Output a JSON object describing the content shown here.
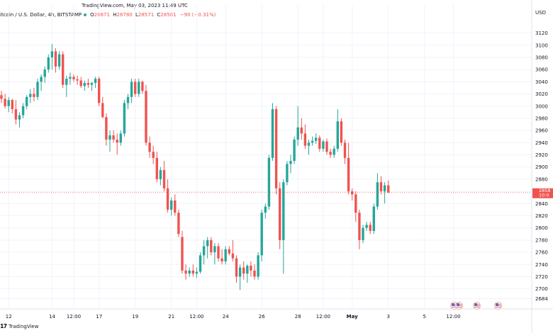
{
  "caption": "TradingView.com, May 03, 2023 11:49 UTC",
  "symbol": {
    "name": "itcoin / U.S. Dollar, 4h, BITSTAMP",
    "o_key": "O",
    "o_val": "28671",
    "h_key": "H",
    "h_val": "28780",
    "l_key": "L",
    "l_val": "28571",
    "c_key": "C",
    "c_val": "28581",
    "change": "−90 (−0.31%)"
  },
  "currency": "USD",
  "price_tag": {
    "price": "2858",
    "countdown": "10:0"
  },
  "brand": "TradingView",
  "colors": {
    "up": "#26a69a",
    "down": "#ef5350",
    "grid": "#f0f3fa",
    "axis_text": "#131722",
    "price_line": "#ef5350"
  },
  "chart_data": {
    "type": "candlestick",
    "ylim": [
      26670,
      31440
    ],
    "y_ticks": [
      31200,
      31000,
      30800,
      30600,
      30400,
      30200,
      30000,
      29800,
      29600,
      29400,
      29200,
      29000,
      28800,
      28600,
      28400,
      28200,
      28000,
      27800,
      27600,
      27400,
      27200,
      27000,
      26840
    ],
    "y_tick_labels": [
      "31200",
      "31000",
      "30800",
      "30600",
      "30400",
      "30200",
      "30000",
      "29800",
      "29600",
      "29400",
      "29200",
      "29000",
      "28800",
      "28600",
      "28400",
      "28200",
      "28000",
      "27800",
      "27600",
      "27400",
      "27200",
      "27000",
      "26840"
    ],
    "y_tick_labels_display": [
      "3120",
      "3100",
      "3080",
      "3060",
      "3040",
      "3020",
      "3000",
      "2980",
      "2960",
      "2940",
      "2920",
      "2900",
      "2880",
      "2860",
      "2840",
      "2820",
      "2800",
      "2780",
      "2760",
      "2740",
      "2720",
      "2700",
      "2684"
    ],
    "x_ticks": [
      {
        "label": "12",
        "bar": 2
      },
      {
        "label": "14",
        "bar": 14
      },
      {
        "label": "12:00",
        "bar": 20
      },
      {
        "label": "17",
        "bar": 27
      },
      {
        "label": "19",
        "bar": 37
      },
      {
        "label": "21",
        "bar": 47
      },
      {
        "label": "12:00",
        "bar": 54
      },
      {
        "label": "24",
        "bar": 62
      },
      {
        "label": "26",
        "bar": 72
      },
      {
        "label": "28",
        "bar": 82
      },
      {
        "label": "12:00",
        "bar": 89
      },
      {
        "label": "May",
        "bar": 97
      },
      {
        "label": "3",
        "bar": 107
      },
      {
        "label": "5",
        "bar": 117
      },
      {
        "label": "12:00",
        "bar": 125
      }
    ],
    "last_price": 28581,
    "candles": [
      [
        30180,
        30250,
        30050,
        30120
      ],
      [
        30120,
        30200,
        29960,
        30000
      ],
      [
        30000,
        30150,
        29900,
        30100
      ],
      [
        30100,
        30120,
        29880,
        29950
      ],
      [
        29950,
        30100,
        29700,
        29780
      ],
      [
        29780,
        29900,
        29650,
        29850
      ],
      [
        29850,
        30050,
        29800,
        30000
      ],
      [
        30000,
        30180,
        29950,
        30150
      ],
      [
        30150,
        30280,
        30050,
        30200
      ],
      [
        30200,
        30300,
        30080,
        30150
      ],
      [
        30150,
        30450,
        30100,
        30400
      ],
      [
        30400,
        30520,
        30250,
        30480
      ],
      [
        30480,
        30650,
        30380,
        30600
      ],
      [
        30600,
        30850,
        30550,
        30800
      ],
      [
        30800,
        31020,
        30600,
        30900
      ],
      [
        30900,
        30950,
        30550,
        30650
      ],
      [
        30650,
        30900,
        30600,
        30850
      ],
      [
        30850,
        30900,
        30300,
        30350
      ],
      [
        30350,
        30500,
        30150,
        30450
      ],
      [
        30450,
        30550,
        30350,
        30480
      ],
      [
        30480,
        30520,
        30400,
        30440
      ],
      [
        30440,
        30500,
        30350,
        30420
      ],
      [
        30420,
        30480,
        30300,
        30330
      ],
      [
        30330,
        30420,
        30250,
        30380
      ],
      [
        30380,
        30450,
        30300,
        30350
      ],
      [
        30350,
        30400,
        30250,
        30380
      ],
      [
        30380,
        30480,
        30300,
        30450
      ],
      [
        30450,
        30480,
        30000,
        30050
      ],
      [
        30050,
        30150,
        29800,
        29820
      ],
      [
        29820,
        29880,
        29350,
        29450
      ],
      [
        29450,
        29600,
        29250,
        29520
      ],
      [
        29520,
        29600,
        29400,
        29450
      ],
      [
        29450,
        29550,
        29200,
        29400
      ],
      [
        29400,
        29600,
        29350,
        29550
      ],
      [
        29550,
        30100,
        29500,
        30050
      ],
      [
        30050,
        30200,
        29950,
        30150
      ],
      [
        30150,
        30450,
        30050,
        30400
      ],
      [
        30400,
        30450,
        30150,
        30200
      ],
      [
        30200,
        30450,
        30150,
        30400
      ],
      [
        30400,
        30420,
        30200,
        30250
      ],
      [
        30250,
        30350,
        29350,
        29400
      ],
      [
        29400,
        29500,
        29150,
        29250
      ],
      [
        29250,
        29350,
        29050,
        29150
      ],
      [
        29150,
        29250,
        28750,
        28800
      ],
      [
        28800,
        29000,
        28700,
        28950
      ],
      [
        28950,
        29100,
        28600,
        28650
      ],
      [
        28650,
        28800,
        28250,
        28300
      ],
      [
        28300,
        28500,
        28200,
        28450
      ],
      [
        28450,
        28550,
        28200,
        28250
      ],
      [
        28250,
        28300,
        27850,
        27900
      ],
      [
        27850,
        27950,
        27250,
        27300
      ],
      [
        27300,
        27400,
        27150,
        27250
      ],
      [
        27250,
        27350,
        27200,
        27300
      ],
      [
        27300,
        27400,
        27200,
        27250
      ],
      [
        27250,
        27350,
        27180,
        27280
      ],
      [
        27280,
        27600,
        27250,
        27550
      ],
      [
        27550,
        27800,
        27400,
        27700
      ],
      [
        27700,
        27850,
        27500,
        27800
      ],
      [
        27800,
        27850,
        27550,
        27600
      ],
      [
        27600,
        27750,
        27400,
        27700
      ],
      [
        27700,
        27750,
        27450,
        27500
      ],
      [
        27500,
        27650,
        27400,
        27450
      ],
      [
        27450,
        27700,
        27400,
        27650
      ],
      [
        27650,
        27700,
        27550,
        27580
      ],
      [
        27580,
        27800,
        27450,
        27500
      ],
      [
        27500,
        27550,
        27100,
        27200
      ],
      [
        27200,
        27400,
        26980,
        27350
      ],
      [
        27350,
        27450,
        27150,
        27250
      ],
      [
        27250,
        27400,
        27100,
        27380
      ],
      [
        27380,
        27450,
        27200,
        27300
      ],
      [
        27300,
        27400,
        27150,
        27200
      ],
      [
        27200,
        27600,
        27150,
        27550
      ],
      [
        27550,
        28300,
        27450,
        28250
      ],
      [
        28250,
        28400,
        28150,
        28350
      ],
      [
        28350,
        29200,
        28300,
        29150
      ],
      [
        29150,
        30050,
        29100,
        29950
      ],
      [
        29950,
        30000,
        28550,
        28650
      ],
      [
        28650,
        28750,
        27650,
        27800
      ],
      [
        27800,
        28800,
        27250,
        28750
      ],
      [
        28750,
        29100,
        28700,
        29050
      ],
      [
        29050,
        29200,
        28900,
        29100
      ],
      [
        29100,
        29500,
        29050,
        29450
      ],
      [
        29450,
        30000,
        29350,
        29650
      ],
      [
        29650,
        29800,
        29450,
        29550
      ],
      [
        29550,
        29700,
        29300,
        29350
      ],
      [
        29350,
        29450,
        29200,
        29400
      ],
      [
        29400,
        29500,
        29350,
        29430
      ],
      [
        29430,
        29550,
        29380,
        29480
      ],
      [
        29480,
        29520,
        29250,
        29300
      ],
      [
        29300,
        29450,
        29250,
        29420
      ],
      [
        29420,
        29470,
        29200,
        29250
      ],
      [
        29250,
        29300,
        29150,
        29200
      ],
      [
        29200,
        29350,
        29150,
        29300
      ],
      [
        29300,
        29950,
        29250,
        29750
      ],
      [
        29750,
        29800,
        29350,
        29400
      ],
      [
        29400,
        29450,
        29050,
        29150
      ],
      [
        29150,
        29400,
        28550,
        28600
      ],
      [
        28600,
        28650,
        28450,
        28550
      ],
      [
        28550,
        28600,
        28100,
        28250
      ],
      [
        28250,
        28300,
        27650,
        27800
      ],
      [
        27800,
        28050,
        27750,
        28000
      ],
      [
        28000,
        28100,
        27950,
        28050
      ],
      [
        28050,
        28100,
        27900,
        27950
      ],
      [
        27950,
        28400,
        27900,
        28350
      ],
      [
        28350,
        28900,
        28300,
        28750
      ],
      [
        28750,
        28850,
        28550,
        28600
      ],
      [
        28600,
        28750,
        28400,
        28700
      ],
      [
        28700,
        28780,
        28571,
        28581
      ]
    ]
  }
}
